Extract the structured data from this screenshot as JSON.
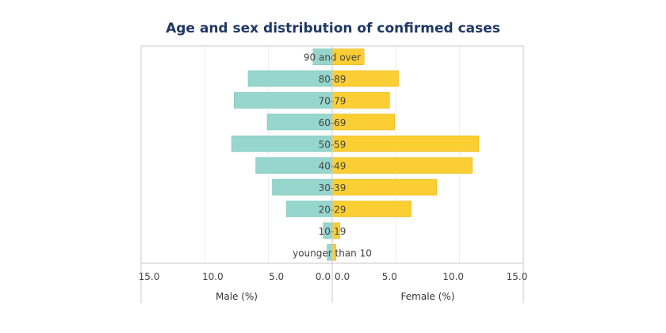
{
  "chart_data": {
    "type": "bar",
    "orientation": "horizontal",
    "subtype": "population-pyramid",
    "title": "Age and sex distribution of confirmed cases",
    "categories": [
      "90 and over",
      "80-89",
      "70-79",
      "60-69",
      "50-59",
      "40-49",
      "30-39",
      "20-29",
      "10-19",
      "younger than 10"
    ],
    "series": [
      {
        "name": "Male (%)",
        "values": [
          1.5,
          6.6,
          7.7,
          5.1,
          7.9,
          6.0,
          4.7,
          3.6,
          0.7,
          0.4
        ]
      },
      {
        "name": "Female (%)",
        "values": [
          2.5,
          5.2,
          4.5,
          4.9,
          11.5,
          11.0,
          8.2,
          6.2,
          0.6,
          0.3
        ]
      }
    ],
    "left_axis": {
      "label": "Male (%)",
      "ticks": [
        "15.0",
        "10.0",
        "5.0",
        "0.0"
      ],
      "range": [
        0,
        15
      ]
    },
    "right_axis": {
      "label": "Female (%)",
      "ticks": [
        "0.0",
        "5.0",
        "10.0",
        "15.0"
      ],
      "range": [
        0,
        15
      ]
    },
    "colors": {
      "male": "#96d6cc",
      "female": "#fbcf33",
      "title": "#1f3864"
    },
    "grid": true
  }
}
